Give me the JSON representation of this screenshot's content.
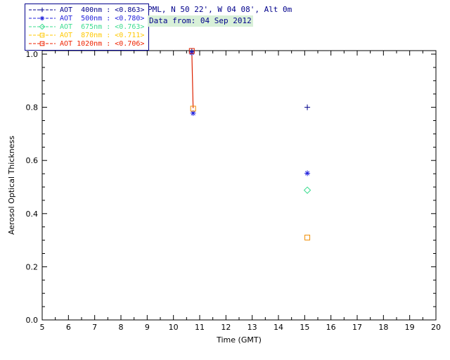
{
  "header": {
    "station": "PML, N 50 22', W 04 08', Alt 0m",
    "date": "Data from: 04 Sep 2012",
    "text_color": "#00008B",
    "date_highlight": "#d8f0d8"
  },
  "legend": {
    "border_color": "#00008B",
    "items": [
      {
        "label": "AOT  400nm",
        "value": "<0.863>",
        "color": "#00008B",
        "symbol": "plus"
      },
      {
        "label": "AOT  500nm",
        "value": "<0.780>",
        "color": "#2222DD",
        "symbol": "asterisk"
      },
      {
        "label": "AOT  675nm",
        "value": "<0.763>",
        "color": "#3BDC8F",
        "symbol": "diamond"
      },
      {
        "label": "AOT  870nm",
        "value": "<0.711>",
        "color": "#FFC800",
        "symbol": "square"
      },
      {
        "label": "AOT 1020nm",
        "value": "<0.706>",
        "color": "#EE2200",
        "symbol": "square"
      }
    ]
  },
  "chart_data": {
    "type": "scatter",
    "title": "",
    "xlabel": "Time (GMT)",
    "ylabel": "Aerosol Optical Thickness",
    "xlim": [
      5,
      20
    ],
    "ylim": [
      0.0,
      1.0
    ],
    "xticks": [
      5,
      6,
      7,
      8,
      9,
      10,
      11,
      12,
      13,
      14,
      15,
      16,
      17,
      18,
      19,
      20
    ],
    "yticks": [
      0.0,
      0.2,
      0.4,
      0.6,
      0.8,
      1.0
    ],
    "x_minor_step": 0.5,
    "y_minor_step": 0.05,
    "grid": false,
    "legend_position": "top-left",
    "frame_color": "#000000",
    "series": [
      {
        "name": "AOT 400nm",
        "mean": "<0.863>",
        "color": "#00008B",
        "symbol": "plus",
        "points": [
          [
            10.7,
            1.01
          ],
          [
            15.1,
            0.8
          ]
        ]
      },
      {
        "name": "AOT 500nm",
        "mean": "<0.780>",
        "color": "#2222DD",
        "symbol": "asterisk",
        "points": [
          [
            10.7,
            1.005
          ],
          [
            10.75,
            0.778
          ],
          [
            15.1,
            0.552
          ]
        ]
      },
      {
        "name": "AOT 675nm",
        "mean": "<0.763>",
        "color": "#3BDC8F",
        "symbol": "diamond",
        "points": [
          [
            15.1,
            0.488
          ]
        ]
      },
      {
        "name": "AOT 870nm",
        "mean": "<0.711>",
        "color": "#F08C00",
        "symbol": "square",
        "points": [
          [
            10.75,
            0.795
          ],
          [
            15.1,
            0.31
          ]
        ]
      },
      {
        "name": "AOT 1020nm",
        "mean": "<0.706>",
        "color": "#DD2200",
        "symbol": "square",
        "points": [
          [
            10.7,
            1.012
          ]
        ]
      }
    ],
    "lines": [
      {
        "name": "aot-1020nm-connector",
        "color": "#DD2200",
        "points": [
          [
            10.7,
            1.012
          ],
          [
            10.75,
            0.797
          ]
        ]
      }
    ]
  }
}
